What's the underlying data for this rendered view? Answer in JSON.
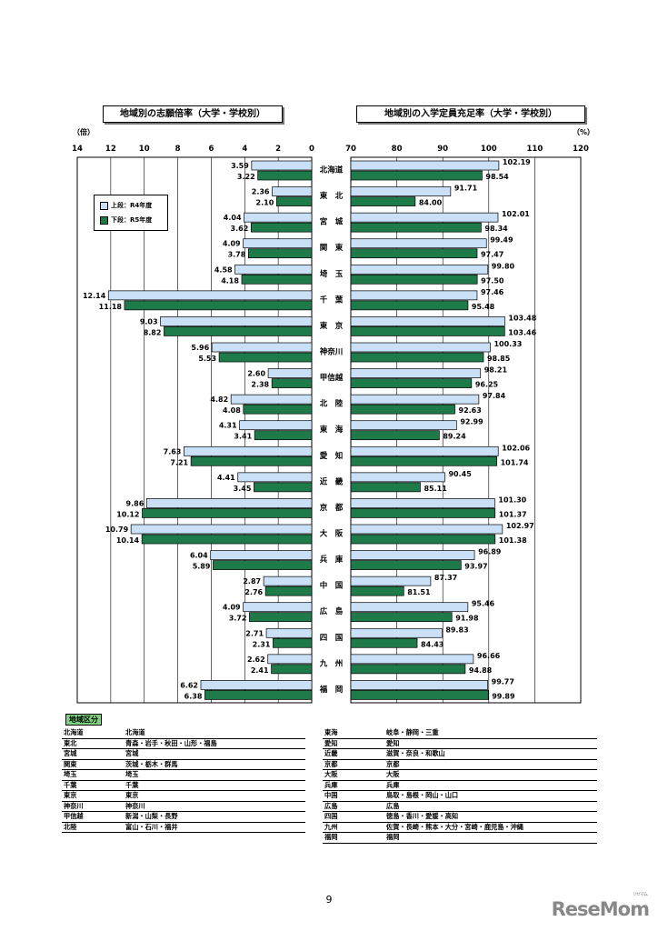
{
  "left_title": "地域別の志願倍率（大学・学校別）",
  "right_title": "地域別の入学定員充足率（大学・学校別）",
  "left_unit": "（倍）",
  "right_unit": "（%）",
  "legend": {
    "upper": "上段：R4年度",
    "lower": "下段：R5年度"
  },
  "colors": {
    "upper": "#c9e0f7",
    "lower": "#1f7a4a"
  },
  "chart_data": [
    {
      "type": "bar",
      "title": "地域別の志願倍率（大学・学校別）",
      "ylabel": "（倍）",
      "orientation": "horizontal",
      "xlim": [
        14,
        0
      ],
      "ticks": [
        "14",
        "12",
        "10",
        "8",
        "6",
        "4",
        "2",
        "0"
      ],
      "categories": [
        "北海道",
        "東　北",
        "宮　城",
        "関　東",
        "埼　玉",
        "千　葉",
        "東　京",
        "神奈川",
        "甲信越",
        "北　陸",
        "東　海",
        "愛　知",
        "近　畿",
        "京　都",
        "大　阪",
        "兵　庫",
        "中　国",
        "広　島",
        "四　国",
        "九　州",
        "福　岡"
      ],
      "series": [
        {
          "name": "上段：R4年度",
          "values": [
            3.59,
            2.36,
            4.04,
            4.09,
            4.58,
            12.14,
            9.03,
            5.96,
            2.6,
            4.82,
            4.31,
            7.63,
            4.41,
            9.86,
            10.79,
            6.04,
            2.87,
            4.09,
            2.71,
            2.62,
            6.62
          ],
          "labels": [
            "3.59",
            "2.36",
            "4.04",
            "4.09",
            "4.58",
            "12.14",
            "9.03",
            "5.96",
            "2.60",
            "4.82",
            "4.31",
            "7.63",
            "4.41",
            "9.86",
            "10.79",
            "6.04",
            "2.87",
            "4.09",
            "2.71",
            "2.62",
            "6.62"
          ]
        },
        {
          "name": "下段：R5年度",
          "values": [
            3.22,
            2.1,
            3.62,
            3.78,
            4.18,
            11.18,
            8.82,
            5.53,
            2.38,
            4.08,
            3.41,
            7.21,
            3.45,
            10.12,
            10.14,
            5.89,
            2.76,
            3.72,
            2.31,
            2.41,
            6.38
          ],
          "labels": [
            "3.22",
            "2.10",
            "3.62",
            "3.78",
            "4.18",
            "11.18",
            "8.82",
            "5.53",
            "2.38",
            "4.08",
            "3.41",
            "7.21",
            "3.45",
            "10.12",
            "10.14",
            "5.89",
            "2.76",
            "3.72",
            "2.31",
            "2.41",
            "6.38"
          ]
        }
      ]
    },
    {
      "type": "bar",
      "title": "地域別の入学定員充足率（大学・学校別）",
      "ylabel": "（%）",
      "orientation": "horizontal",
      "xlim": [
        70,
        120
      ],
      "ticks": [
        "70",
        "80",
        "90",
        "100",
        "110",
        "120"
      ],
      "categories": [
        "北海道",
        "東　北",
        "宮　城",
        "関　東",
        "埼　玉",
        "千　葉",
        "東　京",
        "神奈川",
        "甲信越",
        "北　陸",
        "東　海",
        "愛　知",
        "近　畿",
        "京　都",
        "大　阪",
        "兵　庫",
        "中　国",
        "広　島",
        "四　国",
        "九　州",
        "福　岡"
      ],
      "series": [
        {
          "name": "上段：R4年度",
          "values": [
            102.19,
            91.71,
            102.01,
            99.49,
            99.8,
            97.46,
            103.48,
            100.33,
            98.21,
            97.84,
            92.99,
            102.06,
            90.45,
            101.3,
            102.97,
            96.89,
            87.37,
            95.46,
            89.83,
            96.66,
            99.77
          ],
          "labels": [
            "102.19",
            "91.71",
            "102.01",
            "99.49",
            "99.80",
            "97.46",
            "103.48",
            "100.33",
            "98.21",
            "97.84",
            "92.99",
            "102.06",
            "90.45",
            "101.30",
            "102.97",
            "96.89",
            "87.37",
            "95.46",
            "89.83",
            "96.66",
            "99.77"
          ]
        },
        {
          "name": "下段：R5年度",
          "values": [
            98.54,
            84.0,
            98.34,
            97.47,
            97.5,
            95.48,
            103.46,
            98.85,
            96.25,
            92.63,
            89.24,
            101.74,
            85.11,
            101.37,
            101.38,
            93.97,
            81.51,
            91.98,
            84.43,
            94.88,
            99.89
          ],
          "labels": [
            "98.54",
            "84.00",
            "98.34",
            "97.47",
            "97.50",
            "95.48",
            "103.46",
            "98.85",
            "96.25",
            "92.63",
            "89.24",
            "101.74",
            "85.11",
            "101.37",
            "101.38",
            "93.97",
            "81.51",
            "91.98",
            "84.43",
            "94.88",
            "99.89"
          ]
        }
      ]
    }
  ],
  "regions": {
    "title": "地域区分",
    "left": [
      {
        "name": "北海道",
        "prefs": "北海道"
      },
      {
        "name": "東北",
        "prefs": "青森・岩手・秋田・山形・福島"
      },
      {
        "name": "宮城",
        "prefs": "宮城"
      },
      {
        "name": "関東",
        "prefs": "茨城・栃木・群馬"
      },
      {
        "name": "埼玉",
        "prefs": "埼玉"
      },
      {
        "name": "千葉",
        "prefs": "千葉"
      },
      {
        "name": "東京",
        "prefs": "東京"
      },
      {
        "name": "神奈川",
        "prefs": "神奈川"
      },
      {
        "name": "甲信越",
        "prefs": "新潟・山梨・長野"
      },
      {
        "name": "北陸",
        "prefs": "富山・石川・福井"
      }
    ],
    "right": [
      {
        "name": "東海",
        "prefs": "岐阜・静岡・三重"
      },
      {
        "name": "愛知",
        "prefs": "愛知"
      },
      {
        "name": "近畿",
        "prefs": "滋賀・奈良・和歌山"
      },
      {
        "name": "京都",
        "prefs": "京都"
      },
      {
        "name": "大阪",
        "prefs": "大阪"
      },
      {
        "name": "兵庫",
        "prefs": "兵庫"
      },
      {
        "name": "中国",
        "prefs": "鳥取・島根・岡山・山口"
      },
      {
        "name": "広島",
        "prefs": "広島"
      },
      {
        "name": "四国",
        "prefs": "徳島・香川・愛媛・高知"
      },
      {
        "name": "九州",
        "prefs": "佐賀・長崎・熊本・大分・宮崎・鹿児島・沖縄"
      },
      {
        "name": "福岡",
        "prefs": "福岡"
      }
    ]
  },
  "page_number": "9",
  "logo": "ReseMom",
  "logo_sub": "リセマム"
}
